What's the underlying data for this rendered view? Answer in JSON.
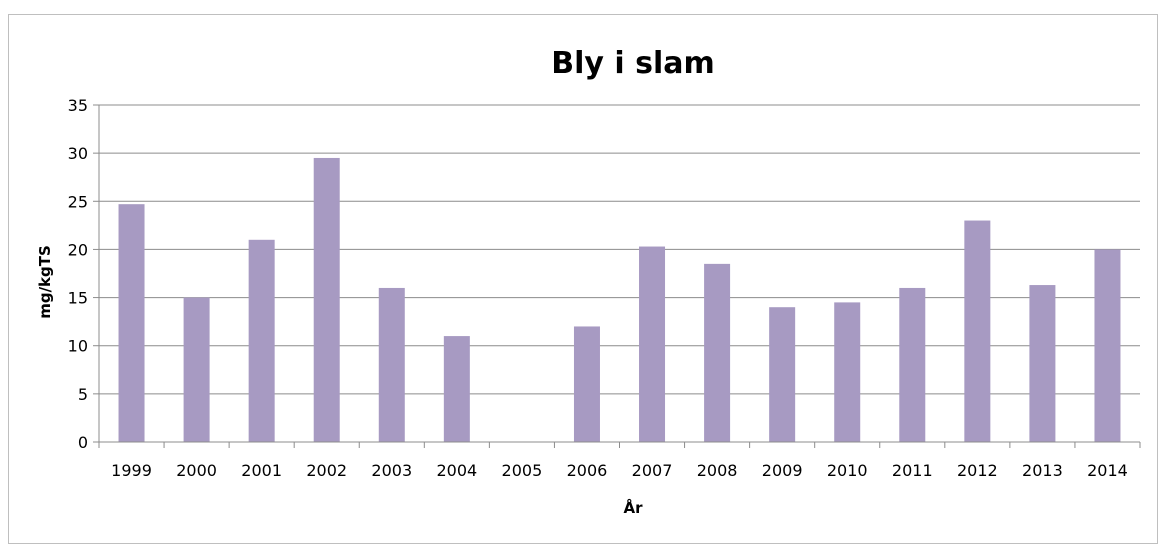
{
  "chart_data": {
    "type": "bar",
    "title": "Bly i slam",
    "xlabel": "År",
    "ylabel": "mg/kgTS",
    "categories": [
      "1999",
      "2000",
      "2001",
      "2002",
      "2003",
      "2004",
      "2005",
      "2006",
      "2007",
      "2008",
      "2009",
      "2010",
      "2011",
      "2012",
      "2013",
      "2014"
    ],
    "values": [
      24.7,
      15,
      21,
      29.5,
      16,
      11,
      null,
      12,
      20.3,
      18.5,
      14,
      14.5,
      16,
      23,
      16.3,
      20
    ],
    "ylim": [
      0,
      35
    ],
    "yticks": [
      "0",
      "5",
      "10",
      "15",
      "20",
      "25",
      "30",
      "35"
    ],
    "grid": true,
    "legend": "none",
    "colors": {
      "bar": "#a79ac2",
      "grid": "#8c8c8c",
      "axis": "#8c8c8c"
    }
  }
}
